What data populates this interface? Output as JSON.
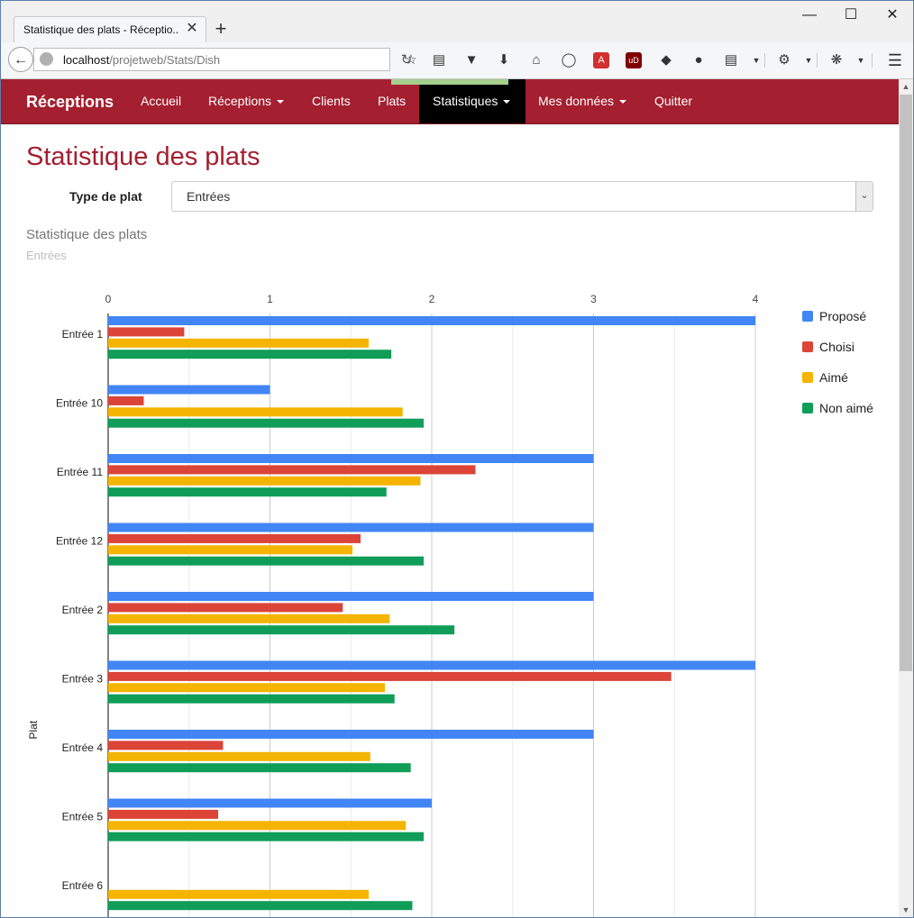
{
  "browser": {
    "tab_title": "Statistique des plats - Réceptio...",
    "url_host": "localhost",
    "url_path": "/projetweb/Stats/Dish",
    "toolbar_icons": [
      "star-icon",
      "reading-list-icon",
      "pocket-icon",
      "download-icon",
      "home-icon",
      "chat-icon",
      "pdf-icon",
      "ublock-icon",
      "extension-icon",
      "extension-icon",
      "clipboard-icon",
      "gear-icon",
      "bug-icon",
      "menu-icon"
    ]
  },
  "nav": {
    "brand": "Réceptions",
    "items": [
      {
        "label": "Accueil",
        "dropdown": false,
        "active": false
      },
      {
        "label": "Réceptions",
        "dropdown": true,
        "active": false
      },
      {
        "label": "Clients",
        "dropdown": false,
        "active": false
      },
      {
        "label": "Plats",
        "dropdown": false,
        "active": false
      },
      {
        "label": "Statistiques",
        "dropdown": true,
        "active": true
      },
      {
        "label": "Mes données",
        "dropdown": true,
        "active": false
      },
      {
        "label": "Quitter",
        "dropdown": false,
        "active": false
      }
    ],
    "colors": {
      "bar": "#a41f2f",
      "active": "#000000"
    }
  },
  "page": {
    "title": "Statistique des plats",
    "type_label": "Type de plat",
    "type_value": "Entrées"
  },
  "chart_data": {
    "type": "bar",
    "orientation": "horizontal",
    "title": "Statistique des plats",
    "subtitle": "Entrées",
    "ylabel": "Plat",
    "xlabel": "",
    "xlim": [
      0,
      4
    ],
    "x_ticks": [
      "0",
      "1",
      "2",
      "3",
      "4"
    ],
    "grid": true,
    "legend_position": "right",
    "categories": [
      "Entrée 1",
      "Entrée 10",
      "Entrée 11",
      "Entrée 12",
      "Entrée 2",
      "Entrée 3",
      "Entrée 4",
      "Entrée 5",
      "Entrée 6"
    ],
    "series": [
      {
        "name": "Proposé",
        "color": "#4285f4",
        "values": [
          4,
          1,
          3,
          3,
          3,
          4,
          3,
          2,
          0
        ]
      },
      {
        "name": "Choisi",
        "color": "#db4437",
        "values": [
          0.47,
          0.22,
          2.27,
          1.56,
          1.45,
          3.48,
          0.71,
          0.68,
          0
        ]
      },
      {
        "name": "Aimé",
        "color": "#f4b400",
        "values": [
          1.61,
          1.82,
          1.93,
          1.51,
          1.74,
          1.71,
          1.62,
          1.84,
          1.61
        ]
      },
      {
        "name": "Non aimé",
        "color": "#0f9d58",
        "values": [
          1.75,
          1.95,
          1.72,
          1.95,
          2.14,
          1.77,
          1.87,
          1.95,
          1.88
        ]
      }
    ]
  }
}
